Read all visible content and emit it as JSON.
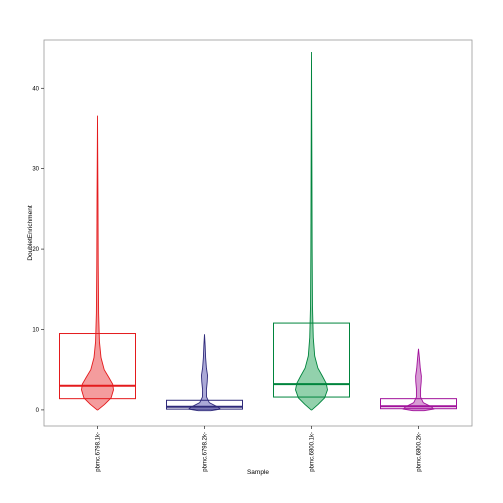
{
  "chart_data": {
    "type": "violin",
    "title": "",
    "xlabel": "Sample",
    "ylabel": "DoubletEnrichment",
    "ylim": [
      -2,
      46
    ],
    "yticks": [
      0,
      10,
      20,
      30,
      40
    ],
    "grid": false,
    "legend": "none",
    "categories": [
      "pbmc.6798.1k-",
      "pbmc.6798.2k-",
      "pbmc.6800.1k-",
      "pbmc.6800.2k-"
    ],
    "series": [
      {
        "category": "pbmc.6798.1k-",
        "color": "#e41a1c",
        "fill": "#f28b8c",
        "box": {
          "q1": 1.4,
          "median": 3.0,
          "q3": 9.5
        },
        "violin": {
          "profile": [
            [
              0,
              0.02
            ],
            [
              0.7,
              0.45
            ],
            [
              1.5,
              0.85
            ],
            [
              2.5,
              1.0
            ],
            [
              3.2,
              0.95
            ],
            [
              4.0,
              0.72
            ],
            [
              5.0,
              0.42
            ],
            [
              6.5,
              0.22
            ],
            [
              8.5,
              0.12
            ],
            [
              12,
              0.07
            ],
            [
              18,
              0.045
            ],
            [
              26,
              0.03
            ],
            [
              36.6,
              0.0
            ]
          ]
        }
      },
      {
        "category": "pbmc.6798.2k-",
        "color": "#2f2a7a",
        "fill": "#9c9ad0",
        "box": {
          "q1": 0.1,
          "median": 0.4,
          "q3": 1.2
        },
        "violin": {
          "profile": [
            [
              -0.1,
              0.4
            ],
            [
              0.1,
              1.0
            ],
            [
              0.4,
              0.8
            ],
            [
              0.9,
              0.3
            ],
            [
              1.6,
              0.13
            ],
            [
              2.5,
              0.12
            ],
            [
              3.5,
              0.17
            ],
            [
              4.3,
              0.19
            ],
            [
              5.2,
              0.12
            ],
            [
              6.5,
              0.07
            ],
            [
              8,
              0.04
            ],
            [
              9.4,
              0.0
            ]
          ]
        }
      },
      {
        "category": "pbmc.6800.1k-",
        "color": "#00843d",
        "fill": "#7fc99d",
        "box": {
          "q1": 1.6,
          "median": 3.2,
          "q3": 10.8
        },
        "violin": {
          "profile": [
            [
              0,
              0.02
            ],
            [
              0.7,
              0.42
            ],
            [
              1.5,
              0.82
            ],
            [
              2.5,
              1.0
            ],
            [
              3.3,
              0.92
            ],
            [
              4.2,
              0.68
            ],
            [
              5.2,
              0.4
            ],
            [
              6.7,
              0.2
            ],
            [
              9,
              0.11
            ],
            [
              13,
              0.06
            ],
            [
              20,
              0.04
            ],
            [
              30,
              0.025
            ],
            [
              44.5,
              0.0
            ]
          ]
        }
      },
      {
        "category": "pbmc.6800.2k-",
        "color": "#a1129b",
        "fill": "#d08bcc",
        "box": {
          "q1": 0.15,
          "median": 0.45,
          "q3": 1.4
        },
        "violin": {
          "profile": [
            [
              -0.1,
              0.35
            ],
            [
              0.1,
              0.95
            ],
            [
              0.4,
              0.8
            ],
            [
              0.9,
              0.3
            ],
            [
              1.6,
              0.13
            ],
            [
              2.6,
              0.13
            ],
            [
              3.5,
              0.17
            ],
            [
              4.2,
              0.18
            ],
            [
              5.2,
              0.11
            ],
            [
              6.4,
              0.06
            ],
            [
              7.6,
              0.0
            ]
          ]
        }
      }
    ]
  }
}
